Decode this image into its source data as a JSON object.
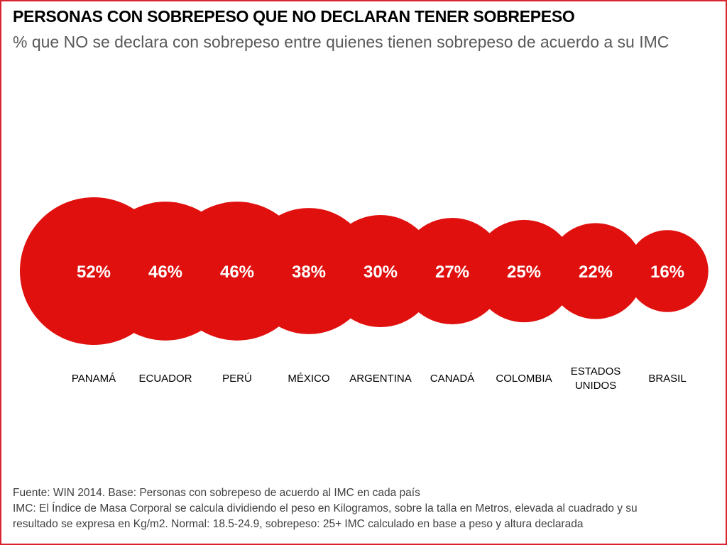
{
  "title": "PERSONAS CON SOBREPESO QUE NO DECLARAN TENER SOBREPESO",
  "subtitle": "% que NO se declara con sobrepeso entre quienes tienen sobrepeso de acuerdo a su IMC",
  "colors": {
    "bubble": "#e0100e",
    "frame": "#d9232e",
    "value_text": "#ffffff",
    "category_text": "#000000"
  },
  "chart_data": {
    "type": "bubble",
    "categories": [
      "PANAMÁ",
      "ECUADOR",
      "PERÚ",
      "MÉXICO",
      "ARGENTINA",
      "CANADÁ",
      "COLOMBIA",
      "ESTADOS UNIDOS",
      "BRASIL"
    ],
    "values": [
      52,
      46,
      46,
      38,
      30,
      27,
      25,
      22,
      16
    ],
    "value_labels": [
      "52%",
      "46%",
      "46%",
      "38%",
      "30%",
      "27%",
      "25%",
      "22%",
      "16%"
    ],
    "unit": "%"
  },
  "footer": {
    "line1": "Fuente: WIN 2014. Base: Personas con sobrepeso de acuerdo al IMC en cada país",
    "line2": "IMC: El Índice de Masa Corporal se calcula dividiendo el peso en Kilogramos, sobre la talla en Metros, elevada al cuadrado y su",
    "line3": "resultado se expresa en Kg/m2. Normal: 18.5-24.9, sobrepeso: 25+ IMC calculado en base a peso y altura declarada"
  }
}
